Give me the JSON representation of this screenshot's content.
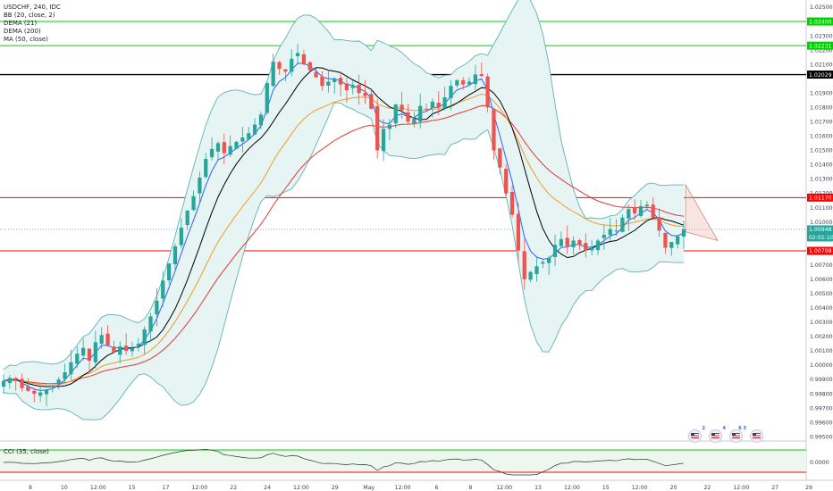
{
  "legend": {
    "symbol": "USDCHF, 240, IDC",
    "bb": "BB (20, close, 2)",
    "dema21": "DEMA (21)",
    "dema200": "DEMA (200)",
    "ma50": "MA (50, close)"
  },
  "cci_label": "CCI (35, close)",
  "events": [
    {
      "name": "us-flag-1",
      "count": "2"
    },
    {
      "name": "us-flag-2",
      "count": "4"
    },
    {
      "name": "us-flag-3",
      "count": "6 3"
    },
    {
      "name": "us-flag-4",
      "count": ""
    }
  ],
  "colors": {
    "up": "#26a69a",
    "down": "#ef5350",
    "bb_band": "#5fb3b3",
    "bb_fill": "#e6f4f4",
    "dema21": "#2962ff",
    "dema200": "#000000",
    "ma50": "#f59a23",
    "red_ma": "#e53935",
    "green_level": "#00d100",
    "red_level": "#ff0000",
    "black_level": "#000000",
    "price_tag": "#2a78c9",
    "timer_tag": "#26a69a"
  },
  "chart_data": {
    "type": "candlestick",
    "title": "USDCHF, 240, IDC",
    "ylim": [
      0.9947,
      1.0255
    ],
    "price_ticks": [
      "1.02500",
      "1.02400",
      "1.02300",
      "1.02200",
      "1.02100",
      "1.02029",
      "1.01900",
      "1.01800",
      "1.01700",
      "1.01600",
      "1.01500",
      "1.01400",
      "1.01300",
      "1.01200",
      "1.01170",
      "1.01100",
      "1.01000",
      "1.00948",
      "1.00798",
      "1.00700",
      "1.00600",
      "1.00500",
      "1.00400",
      "1.00300",
      "1.00200",
      "1.00100",
      "1.00000",
      "0.99900",
      "0.99800",
      "0.99700",
      "0.99600",
      "0.99500"
    ],
    "time_ticks": [
      "8",
      "10",
      "12:00",
      "15",
      "17",
      "12:00",
      "22",
      "24",
      "12:00",
      "29",
      "May",
      "12:00",
      "6",
      "8",
      "12:00",
      "13",
      "12:00",
      "15",
      "12:00",
      "20",
      "22",
      "12:00",
      "27",
      "29"
    ],
    "horizontal_levels": [
      {
        "price": 1.024,
        "label": "1.02400",
        "color": "green"
      },
      {
        "price": 1.02231,
        "label": "1.02231",
        "color": "green"
      },
      {
        "price": 1.02029,
        "label": "1.02029",
        "color": "black"
      },
      {
        "price": 1.0117,
        "label": "1.01170",
        "color": "red"
      },
      {
        "price": 1.00798,
        "label": "1.00798",
        "color": "red"
      }
    ],
    "last_price": "1.00948",
    "countdown": "02:01:10",
    "close_series": [
      0.9989,
      0.9991,
      0.999,
      0.9984,
      0.9982,
      0.998,
      0.9981,
      0.9983,
      0.9985,
      0.999,
      0.9995,
      1.0002,
      1.0008,
      1.0012,
      1.0003,
      1.0016,
      1.0021,
      1.0014,
      1.0009,
      1.0013,
      1.001,
      1.0012,
      1.0015,
      1.0025,
      1.0034,
      1.0045,
      1.0059,
      1.0071,
      1.0083,
      1.0096,
      1.0108,
      1.0118,
      1.0131,
      1.0144,
      1.0151,
      1.0155,
      1.0148,
      1.0153,
      1.0156,
      1.0159,
      1.0162,
      1.0168,
      1.0175,
      1.0197,
      1.0212,
      1.0207,
      1.0205,
      1.0214,
      1.0218,
      1.021,
      1.0206,
      1.0201,
      1.0195,
      1.0198,
      1.02,
      1.0196,
      1.0192,
      1.0195,
      1.019,
      1.0188,
      1.0179,
      1.015,
      1.0165,
      1.0168,
      1.0182,
      1.0178,
      1.017,
      1.0172,
      1.0181,
      1.0179,
      1.0184,
      1.018,
      1.0187,
      1.0195,
      1.0199,
      1.0196,
      1.0198,
      1.0203,
      1.0202,
      1.018,
      1.015,
      1.0138,
      1.012,
      1.0105,
      1.008,
      1.006,
      1.0065,
      1.0069,
      1.0072,
      1.0075,
      1.0084,
      1.0088,
      1.0083,
      1.0087,
      1.0084,
      1.008,
      1.0082,
      1.0087,
      1.0091,
      1.0095,
      1.0094,
      1.0103,
      1.0109,
      1.0106,
      1.0111,
      1.0112,
      1.0103,
      1.0094,
      1.0082,
      1.0086,
      1.009,
      1.0095
    ],
    "series": [
      {
        "name": "DEMA (21)"
      },
      {
        "name": "DEMA (200)"
      },
      {
        "name": "MA (50, close)"
      },
      {
        "name": "BB (20, close, 2)"
      }
    ],
    "cci": {
      "label": "CCI (35, close)",
      "zero_label": "0.0000"
    }
  }
}
